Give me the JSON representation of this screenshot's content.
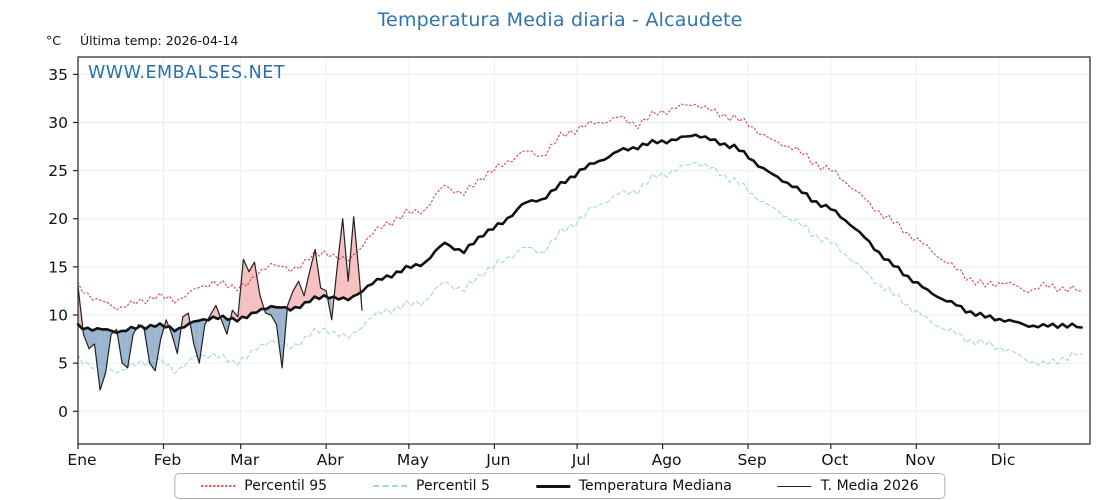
{
  "header": {
    "title": "Temperatura Media diaria - Alcaudete",
    "y_unit": "°C",
    "last_temp_label": "Última temp: 2026-04-14",
    "watermark": "WWW.EMBALSES.NET"
  },
  "legend": [
    {
      "name": "Percentil 95",
      "style": "dotted",
      "color": "#d94545"
    },
    {
      "name": "Percentil 5",
      "style": "dashed",
      "color": "#9fd6e8"
    },
    {
      "name": "Temperatura Mediana",
      "style": "thick",
      "color": "#111111"
    },
    {
      "name": "T. Media 2026",
      "style": "thin",
      "color": "#222222"
    }
  ],
  "chart_data": {
    "type": "line",
    "title": "Temperatura Media diaria - Alcaudete",
    "xlabel": "",
    "ylabel": "°C",
    "ylim": [
      -3.4,
      36.8
    ],
    "y_ticks": [
      0,
      5,
      10,
      15,
      20,
      25,
      30,
      35
    ],
    "x_ticks": [
      {
        "day": 1,
        "label": "Ene"
      },
      {
        "day": 32,
        "label": "Feb"
      },
      {
        "day": 60,
        "label": "Mar"
      },
      {
        "day": 91,
        "label": "Abr"
      },
      {
        "day": 121,
        "label": "May"
      },
      {
        "day": 152,
        "label": "Jun"
      },
      {
        "day": 182,
        "label": "Jul"
      },
      {
        "day": 213,
        "label": "Ago"
      },
      {
        "day": 244,
        "label": "Sep"
      },
      {
        "day": 274,
        "label": "Oct"
      },
      {
        "day": 305,
        "label": "Nov"
      },
      {
        "day": 335,
        "label": "Dic"
      }
    ],
    "grid": true,
    "legend_position": "bottom",
    "fill_above_color": "#f0a0a0",
    "fill_below_color": "#7096be",
    "series": [
      {
        "name": "Percentil 95",
        "color": "#d94545",
        "day_start": 1,
        "day_step": 7,
        "values": [
          13,
          11.5,
          10.8,
          11.2,
          12,
          11.5,
          12.5,
          13.5,
          12.8,
          13.5,
          15.5,
          14.5,
          16,
          16.5,
          15.5,
          18,
          19.5,
          20.5,
          21,
          23.5,
          22.5,
          24.5,
          25.5,
          27,
          26.5,
          28.5,
          29.5,
          30,
          30.5,
          29.8,
          31,
          31.5,
          32,
          31,
          30.5,
          29.5,
          28,
          27.5,
          26,
          25,
          23.5,
          21.5,
          20,
          18.5,
          17,
          15.5,
          14,
          13,
          13.5,
          12.5,
          13,
          12.8,
          12.5
        ]
      },
      {
        "name": "Percentil 5",
        "color": "#9fd6e8",
        "day_start": 1,
        "day_step": 7,
        "values": [
          5.5,
          4.5,
          4.2,
          4.8,
          5.5,
          4.2,
          5.5,
          6,
          5,
          6,
          7.5,
          6.5,
          8,
          8.5,
          7.5,
          9.5,
          10.5,
          11,
          11.5,
          13.5,
          12.5,
          14.5,
          15.5,
          17,
          16.5,
          18.5,
          20,
          21.5,
          22.5,
          23,
          24.5,
          25,
          26,
          25,
          24,
          22.5,
          21,
          20,
          18.5,
          17.5,
          16,
          14,
          12.5,
          11,
          9.5,
          8.5,
          7.5,
          7,
          6.5,
          5.5,
          4.8,
          5.5,
          6
        ]
      },
      {
        "name": "Temperatura Mediana",
        "color": "#111111",
        "day_start": 1,
        "day_step": 7,
        "values": [
          8.8,
          8.5,
          8.3,
          8.6,
          9,
          8.5,
          9.2,
          9.8,
          9.5,
          10,
          11,
          10.5,
          11.5,
          12,
          11.5,
          13,
          14,
          14.8,
          15.5,
          17.5,
          16.5,
          18.5,
          19.5,
          21.5,
          22,
          23.5,
          25,
          26,
          27,
          27.5,
          28,
          28.2,
          28.8,
          28,
          27.5,
          26,
          24.5,
          23.5,
          22,
          21,
          19.5,
          17.5,
          15.5,
          14,
          12.5,
          11.5,
          10.5,
          9.8,
          9.5,
          9,
          8.8,
          9,
          8.7
        ]
      },
      {
        "name": "T. Media 2026",
        "color": "#222222",
        "days": [
          1,
          3,
          5,
          7,
          9,
          11,
          13,
          15,
          17,
          19,
          21,
          23,
          25,
          27,
          29,
          31,
          33,
          35,
          37,
          39,
          41,
          43,
          45,
          47,
          49,
          51,
          53,
          55,
          57,
          59,
          61,
          63,
          65,
          67,
          69,
          71,
          73,
          75,
          77,
          79,
          81,
          83,
          85,
          87,
          89,
          91,
          93,
          95,
          97,
          99,
          101,
          103,
          104
        ],
        "values": [
          13,
          8,
          6.5,
          7,
          2.2,
          4,
          8,
          8.5,
          5,
          4.5,
          8,
          9,
          8.5,
          5,
          4.2,
          7.5,
          9.5,
          8,
          6,
          9.8,
          10.2,
          7,
          5,
          9,
          10,
          11,
          9.5,
          8,
          10.5,
          9.8,
          15.8,
          14.5,
          15.5,
          12,
          10.2,
          10,
          9,
          4.5,
          11,
          12.5,
          13.5,
          12,
          14.5,
          16.8,
          12.8,
          12.5,
          9.5,
          15,
          20,
          13.5,
          20.2,
          14,
          10.5
        ]
      }
    ]
  }
}
